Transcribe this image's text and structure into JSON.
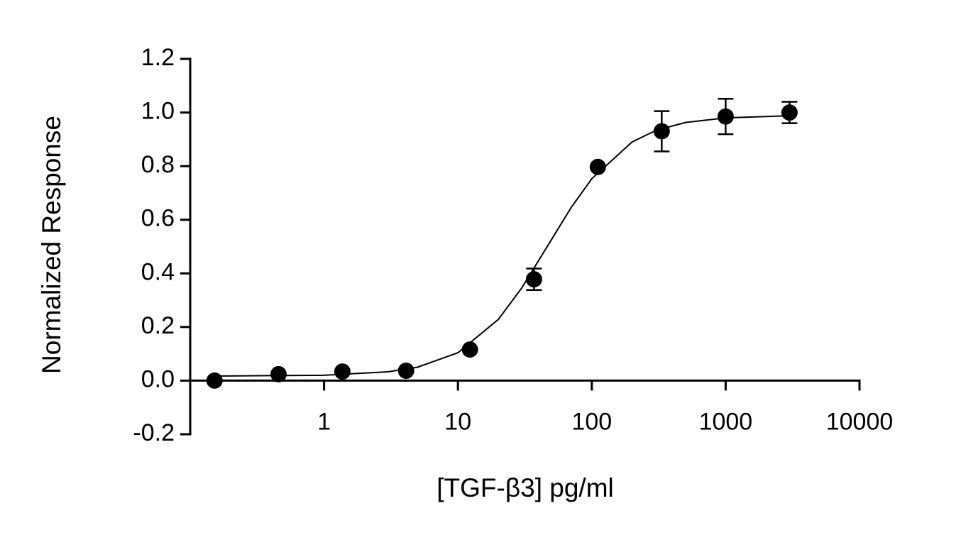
{
  "chart_data": {
    "type": "scatter",
    "x_label": "[TGF-β3] pg/ml",
    "y_label": "Normalized Response",
    "x": [
      0.152,
      0.457,
      1.37,
      4.1,
      12.3,
      37,
      111,
      333,
      1000,
      3000
    ],
    "values": [
      0.0,
      0.024,
      0.034,
      0.037,
      0.116,
      0.378,
      0.797,
      0.93,
      0.985,
      1.0
    ],
    "errors": [
      null,
      null,
      null,
      null,
      null,
      0.04,
      null,
      0.075,
      0.066,
      0.04
    ],
    "fit": {
      "x": [
        0.15,
        1,
        3,
        5,
        10,
        20,
        30,
        50,
        70,
        100,
        200,
        300,
        500,
        1000,
        3000
      ],
      "values": [
        0.017,
        0.02,
        0.033,
        0.05,
        0.104,
        0.228,
        0.346,
        0.526,
        0.645,
        0.753,
        0.89,
        0.933,
        0.963,
        0.98,
        0.988
      ]
    },
    "color": "#000000",
    "xscale": "log",
    "xlim": [
      0.1,
      10000
    ],
    "xticks": [
      1,
      10,
      100,
      1000,
      10000
    ],
    "ylim": [
      -0.2,
      1.2
    ],
    "yticks": [
      -0.2,
      {
        "value": 0,
        "label": "0.0"
      },
      0.2,
      0.4,
      0.6,
      0.8,
      {
        "value": 1,
        "label": "1.0"
      },
      1.2
    ]
  }
}
